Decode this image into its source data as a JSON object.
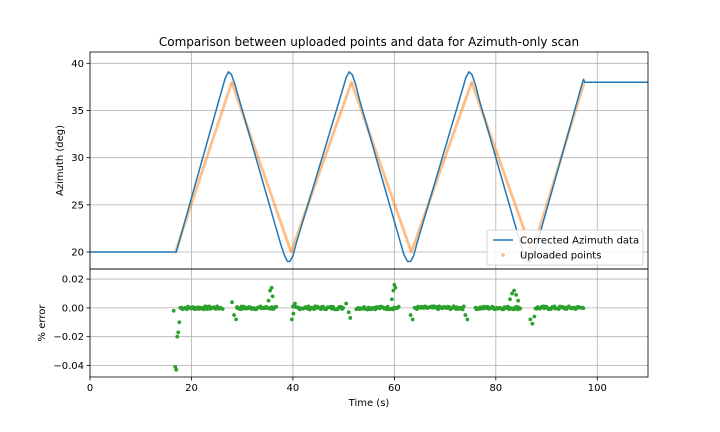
{
  "chart_data": [
    {
      "type": "line",
      "title": "Comparison between uploaded points and data for Azimuth-only scan",
      "xlabel": "",
      "ylabel": "Azimuth (deg)",
      "xlim": [
        0,
        110
      ],
      "ylim": [
        18.2,
        41.2
      ],
      "yticks": [
        20,
        25,
        30,
        35,
        40
      ],
      "grid": true,
      "legend_position": "bottom-right",
      "series": [
        {
          "name": "Corrected Azimuth data",
          "style": "line",
          "color": "#1f77b4",
          "x": [
            0,
            16.5,
            17.0,
            26.0,
            26.7,
            27.3,
            27.9,
            28.6,
            29.5,
            37.5,
            38.3,
            38.9,
            39.4,
            40.0,
            40.7,
            49.8,
            50.5,
            51.1,
            51.7,
            52.4,
            53.2,
            61.2,
            61.9,
            62.6,
            63.2,
            63.8,
            64.5,
            73.4,
            74.1,
            74.7,
            75.3,
            76.0,
            76.8,
            84.8,
            85.6,
            86.2,
            86.8,
            87.4,
            88.2,
            97.1,
            97.3,
            97.5,
            110
          ],
          "y": [
            20,
            20,
            20,
            37.2,
            38.5,
            39.1,
            38.8,
            37.7,
            36.0,
            21.0,
            19.7,
            19.0,
            19.0,
            19.6,
            21.0,
            37.2,
            38.5,
            39.1,
            38.8,
            37.7,
            36.0,
            21.0,
            19.7,
            19.0,
            19.0,
            19.6,
            21.0,
            37.2,
            38.5,
            39.1,
            38.8,
            37.7,
            36.0,
            21.0,
            19.7,
            19.0,
            19.0,
            19.6,
            21.0,
            38.0,
            38.3,
            38.0,
            38.0
          ]
        },
        {
          "name": "Uploaded points",
          "style": "points",
          "color": "#ff7f0e",
          "x": [
            16.5,
            27.6,
            39.3,
            51.2,
            63.0,
            74.9,
            86.8,
            97.1
          ],
          "y": [
            20,
            38.0,
            20.0,
            38.0,
            20.0,
            38.0,
            20.0,
            38.0
          ]
        }
      ]
    },
    {
      "type": "scatter",
      "title": "",
      "xlabel": "Time (s)",
      "ylabel": "% error",
      "xlim": [
        0,
        110
      ],
      "ylim": [
        -0.048,
        0.027
      ],
      "xticks": [
        0,
        20,
        40,
        60,
        80,
        100
      ],
      "yticks": [
        0.02,
        0.0,
        -0.02,
        -0.04
      ],
      "ytick_labels": [
        "0.02",
        "0.00",
        "−0.02",
        "−0.04"
      ],
      "grid": true,
      "series": [
        {
          "name": "",
          "color": "#2ca02c",
          "segments": [
            {
              "start": 17.8,
              "end": 26.3,
              "step": 0.22
            },
            {
              "start": 29.0,
              "end": 36.8,
              "step": 0.22
            },
            {
              "start": 40.0,
              "end": 50.0,
              "step": 0.22
            },
            {
              "start": 52.5,
              "end": 61.0,
              "step": 0.22
            },
            {
              "start": 64.0,
              "end": 73.8,
              "step": 0.22
            },
            {
              "start": 76.0,
              "end": 85.0,
              "step": 0.22
            },
            {
              "start": 87.8,
              "end": 97.3,
              "step": 0.22
            }
          ],
          "x": [
            16.5,
            16.8,
            17.0,
            17.2,
            17.4,
            17.6,
            28.0,
            28.4,
            28.8,
            29.0,
            35.2,
            35.5,
            35.8,
            36.0,
            39.8,
            40.1,
            40.4,
            50.5,
            51.0,
            51.3,
            59.5,
            59.8,
            60.0,
            60.2,
            63.2,
            63.6,
            74.0,
            74.4,
            82.8,
            83.2,
            83.6,
            84.0,
            84.4,
            86.8,
            87.2,
            87.6
          ],
          "y": [
            -0.002,
            -0.041,
            -0.043,
            -0.02,
            -0.017,
            -0.01,
            0.004,
            -0.005,
            -0.008,
            0.0,
            0.005,
            0.012,
            0.014,
            0.008,
            -0.008,
            -0.004,
            0.003,
            0.003,
            -0.003,
            -0.007,
            0.006,
            0.012,
            0.016,
            0.014,
            -0.005,
            -0.008,
            -0.005,
            -0.008,
            0.006,
            0.01,
            0.012,
            0.009,
            0.005,
            -0.008,
            -0.011,
            -0.006
          ]
        }
      ]
    }
  ]
}
